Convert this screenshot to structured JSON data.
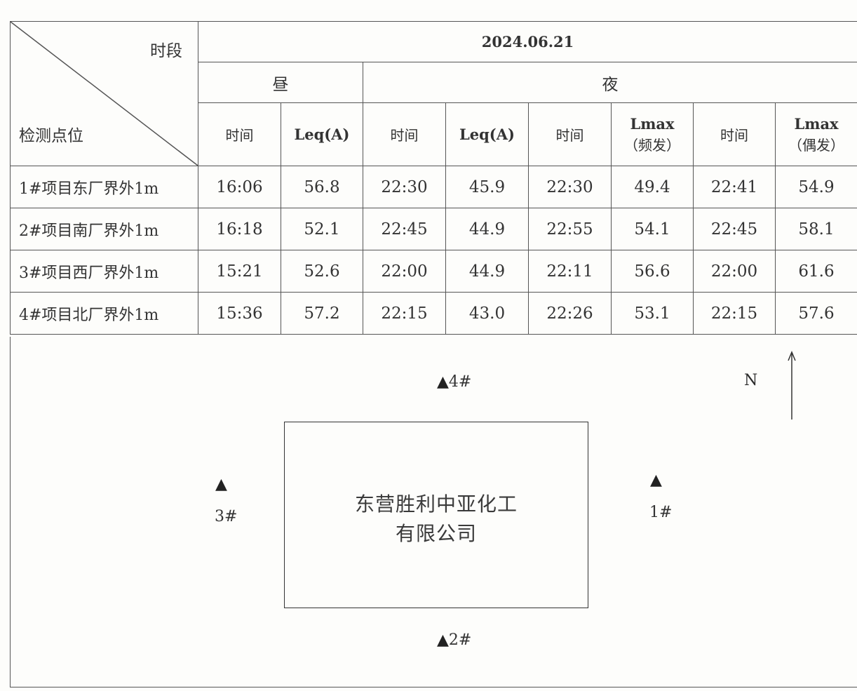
{
  "header": {
    "corner_top": "时段",
    "corner_bottom": "检测点位",
    "date": "2024.06.21",
    "day": "昼",
    "night": "夜",
    "col_time": "时间",
    "col_leq": "Leq(A)",
    "col_lmax": "Lmax",
    "col_freq": "（频发）",
    "col_occ": "（偶发）"
  },
  "rows": [
    {
      "location": "1#项目东厂界外1m",
      "day_time": "16:06",
      "day_leq": "56.8",
      "n_time1": "22:30",
      "n_leq": "45.9",
      "n_time2": "22:30",
      "n_lmax_freq": "49.4",
      "n_time3": "22:41",
      "n_lmax_occ": "54.9"
    },
    {
      "location": "2#项目南厂界外1m",
      "day_time": "16:18",
      "day_leq": "52.1",
      "n_time1": "22:45",
      "n_leq": "44.9",
      "n_time2": "22:55",
      "n_lmax_freq": "54.1",
      "n_time3": "22:45",
      "n_lmax_occ": "58.1"
    },
    {
      "location": "3#项目西厂界外1m",
      "day_time": "15:21",
      "day_leq": "52.6",
      "n_time1": "22:00",
      "n_leq": "44.9",
      "n_time2": "22:11",
      "n_lmax_freq": "56.6",
      "n_time3": "22:00",
      "n_lmax_occ": "61.6"
    },
    {
      "location": "4#项目北厂界外1m",
      "day_time": "15:36",
      "day_leq": "57.2",
      "n_time1": "22:15",
      "n_leq": "43.0",
      "n_time2": "22:26",
      "n_lmax_freq": "53.1",
      "n_time3": "22:15",
      "n_lmax_occ": "57.6"
    }
  ],
  "map": {
    "marker": "▲",
    "point1": "1#",
    "point2": "2#",
    "point3": "3#",
    "point4": "4#",
    "plant_line1": "东营胜利中亚化工",
    "plant_line2": "有限公司",
    "north": "N"
  }
}
